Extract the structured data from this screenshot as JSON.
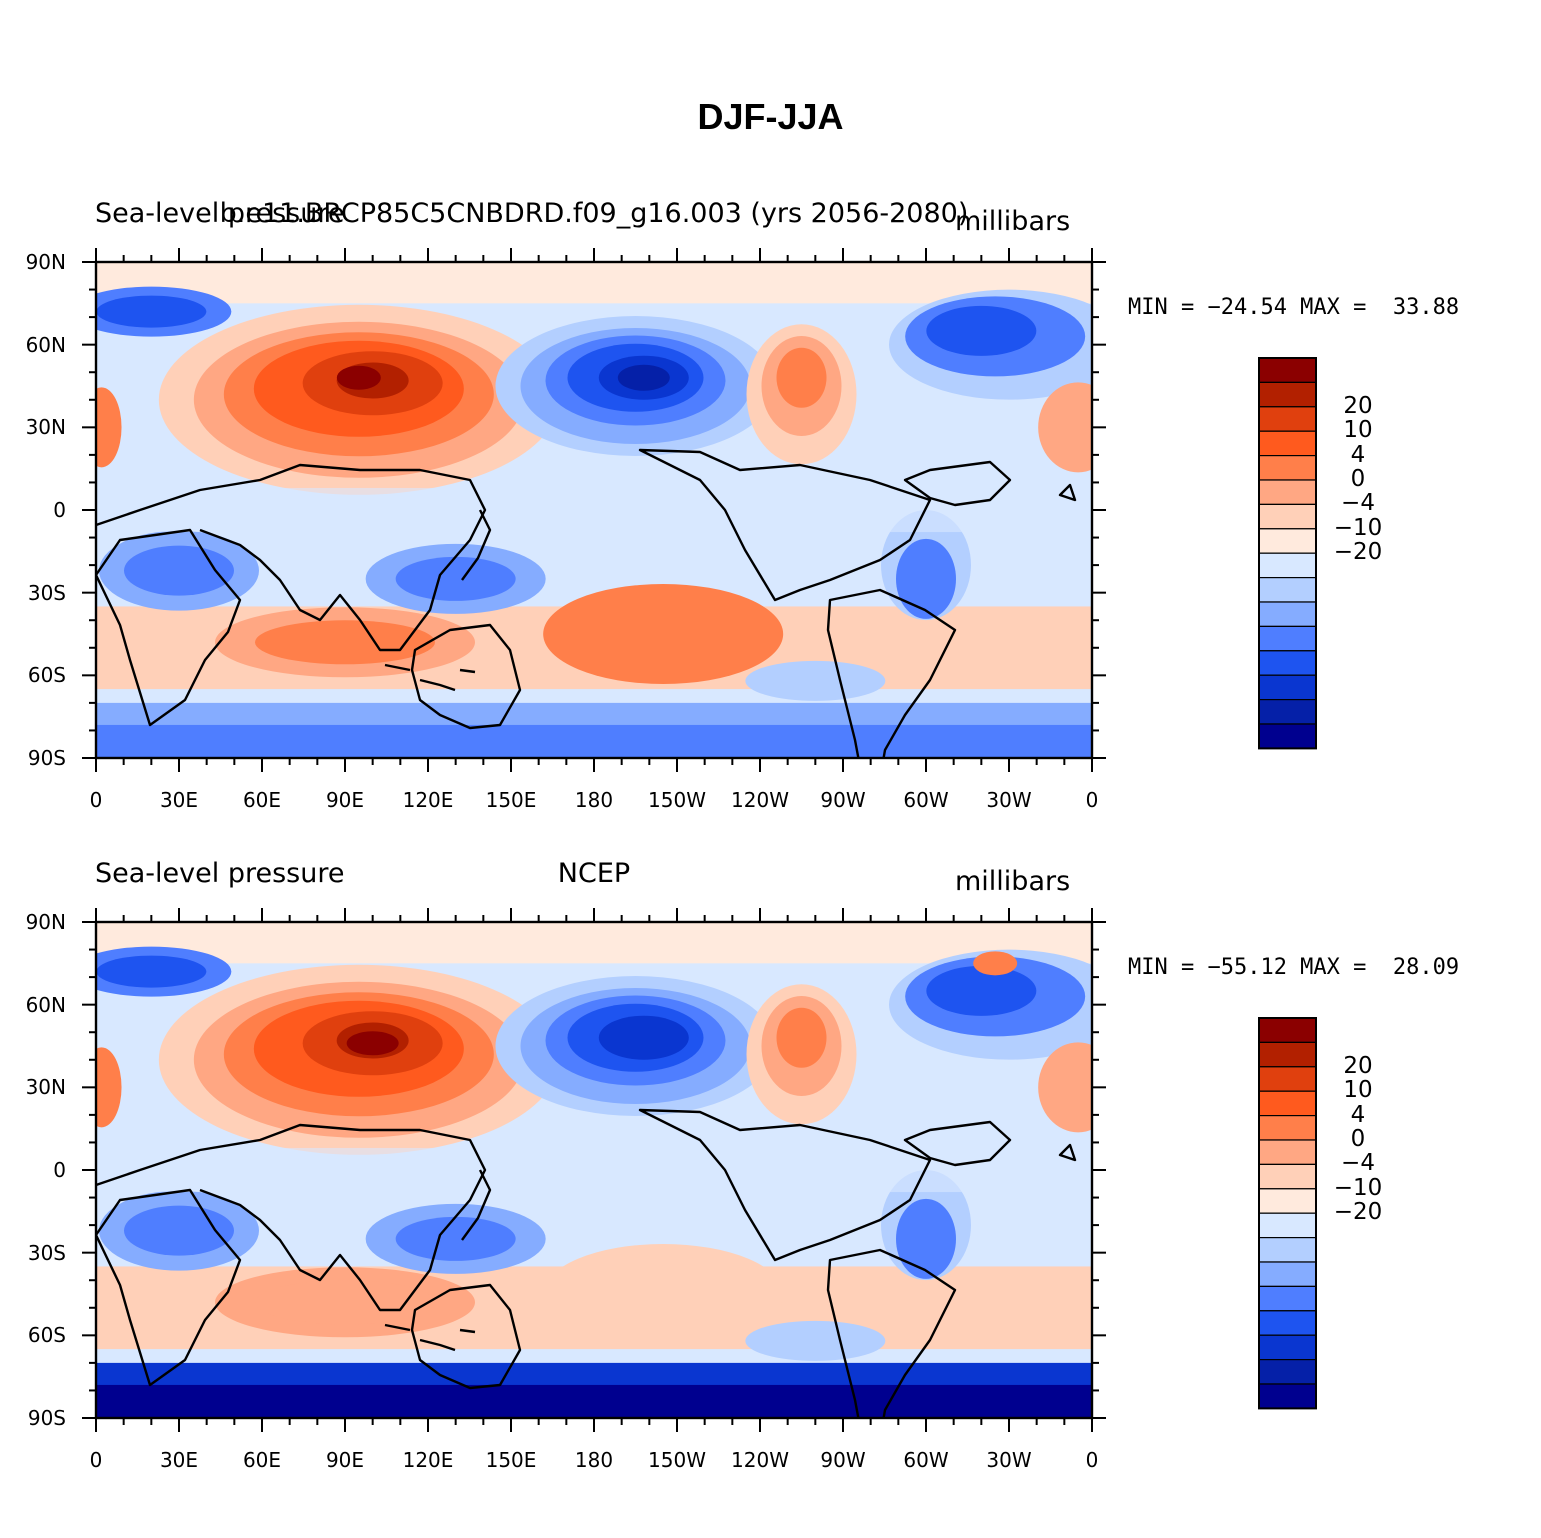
{
  "title": "DJF-JJA",
  "panels": [
    {
      "left_label": "Sea-level pressure",
      "center_label": "b.e11.BRCP85C5CNBDRD.f09_g16.003 (yrs 2056-2080)",
      "right_label": "millibars",
      "min_max": "MIN = −24.54 MAX =  33.88",
      "colorbar_labels": [
        "20",
        "10",
        "4",
        "0",
        "−4",
        "−10",
        "−20"
      ],
      "variant": "model"
    },
    {
      "left_label": "Sea-level pressure",
      "center_label": "NCEP",
      "right_label": "millibars",
      "min_max": "MIN = −55.12 MAX =  28.09",
      "colorbar_labels": [
        "20",
        "10",
        "4",
        "0",
        "−4",
        "−10",
        "−20"
      ],
      "variant": "obs"
    }
  ],
  "axes": {
    "lat_ticks": [
      "90N",
      "60N",
      "30N",
      "0",
      "30S",
      "60S",
      "90S"
    ],
    "lon_ticks": [
      "0",
      "30E",
      "60E",
      "90E",
      "120E",
      "150E",
      "180",
      "150W",
      "120W",
      "90W",
      "60W",
      "30W",
      "0"
    ]
  },
  "colorbar_colors": [
    "#8b0000",
    "#b22000",
    "#e0400e",
    "#ff5a1e",
    "#ff7f4a",
    "#ffa783",
    "#ffd0b8",
    "#ffeadd",
    "#d8e8ff",
    "#b3cfff",
    "#85acff",
    "#4f7eff",
    "#1e54f0",
    "#0a36d0",
    "#0520a8",
    "#00008f"
  ]
}
